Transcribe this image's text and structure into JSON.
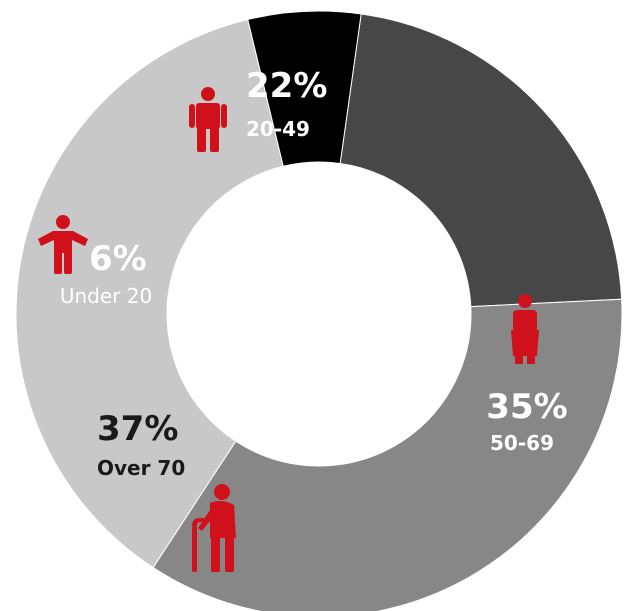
{
  "chart_data": {
    "type": "pie",
    "donut": true,
    "categories": [
      "20-49",
      "50-69",
      "Over 70",
      "Under 20"
    ],
    "values": [
      22,
      35,
      37,
      6
    ],
    "value_labels": [
      "22%",
      "35%",
      "37%",
      "6%"
    ],
    "colors": [
      "#474747",
      "#878787",
      "#c8c8c8",
      "#000000"
    ],
    "label_colors": [
      "#ffffff",
      "#ffffff",
      "#1a1a1a",
      "#ffffff"
    ],
    "icons": [
      "man-icon",
      "woman-icon",
      "elderly-person-with-cane-icon",
      "child-icon"
    ],
    "icon_color": "#d0111b"
  }
}
